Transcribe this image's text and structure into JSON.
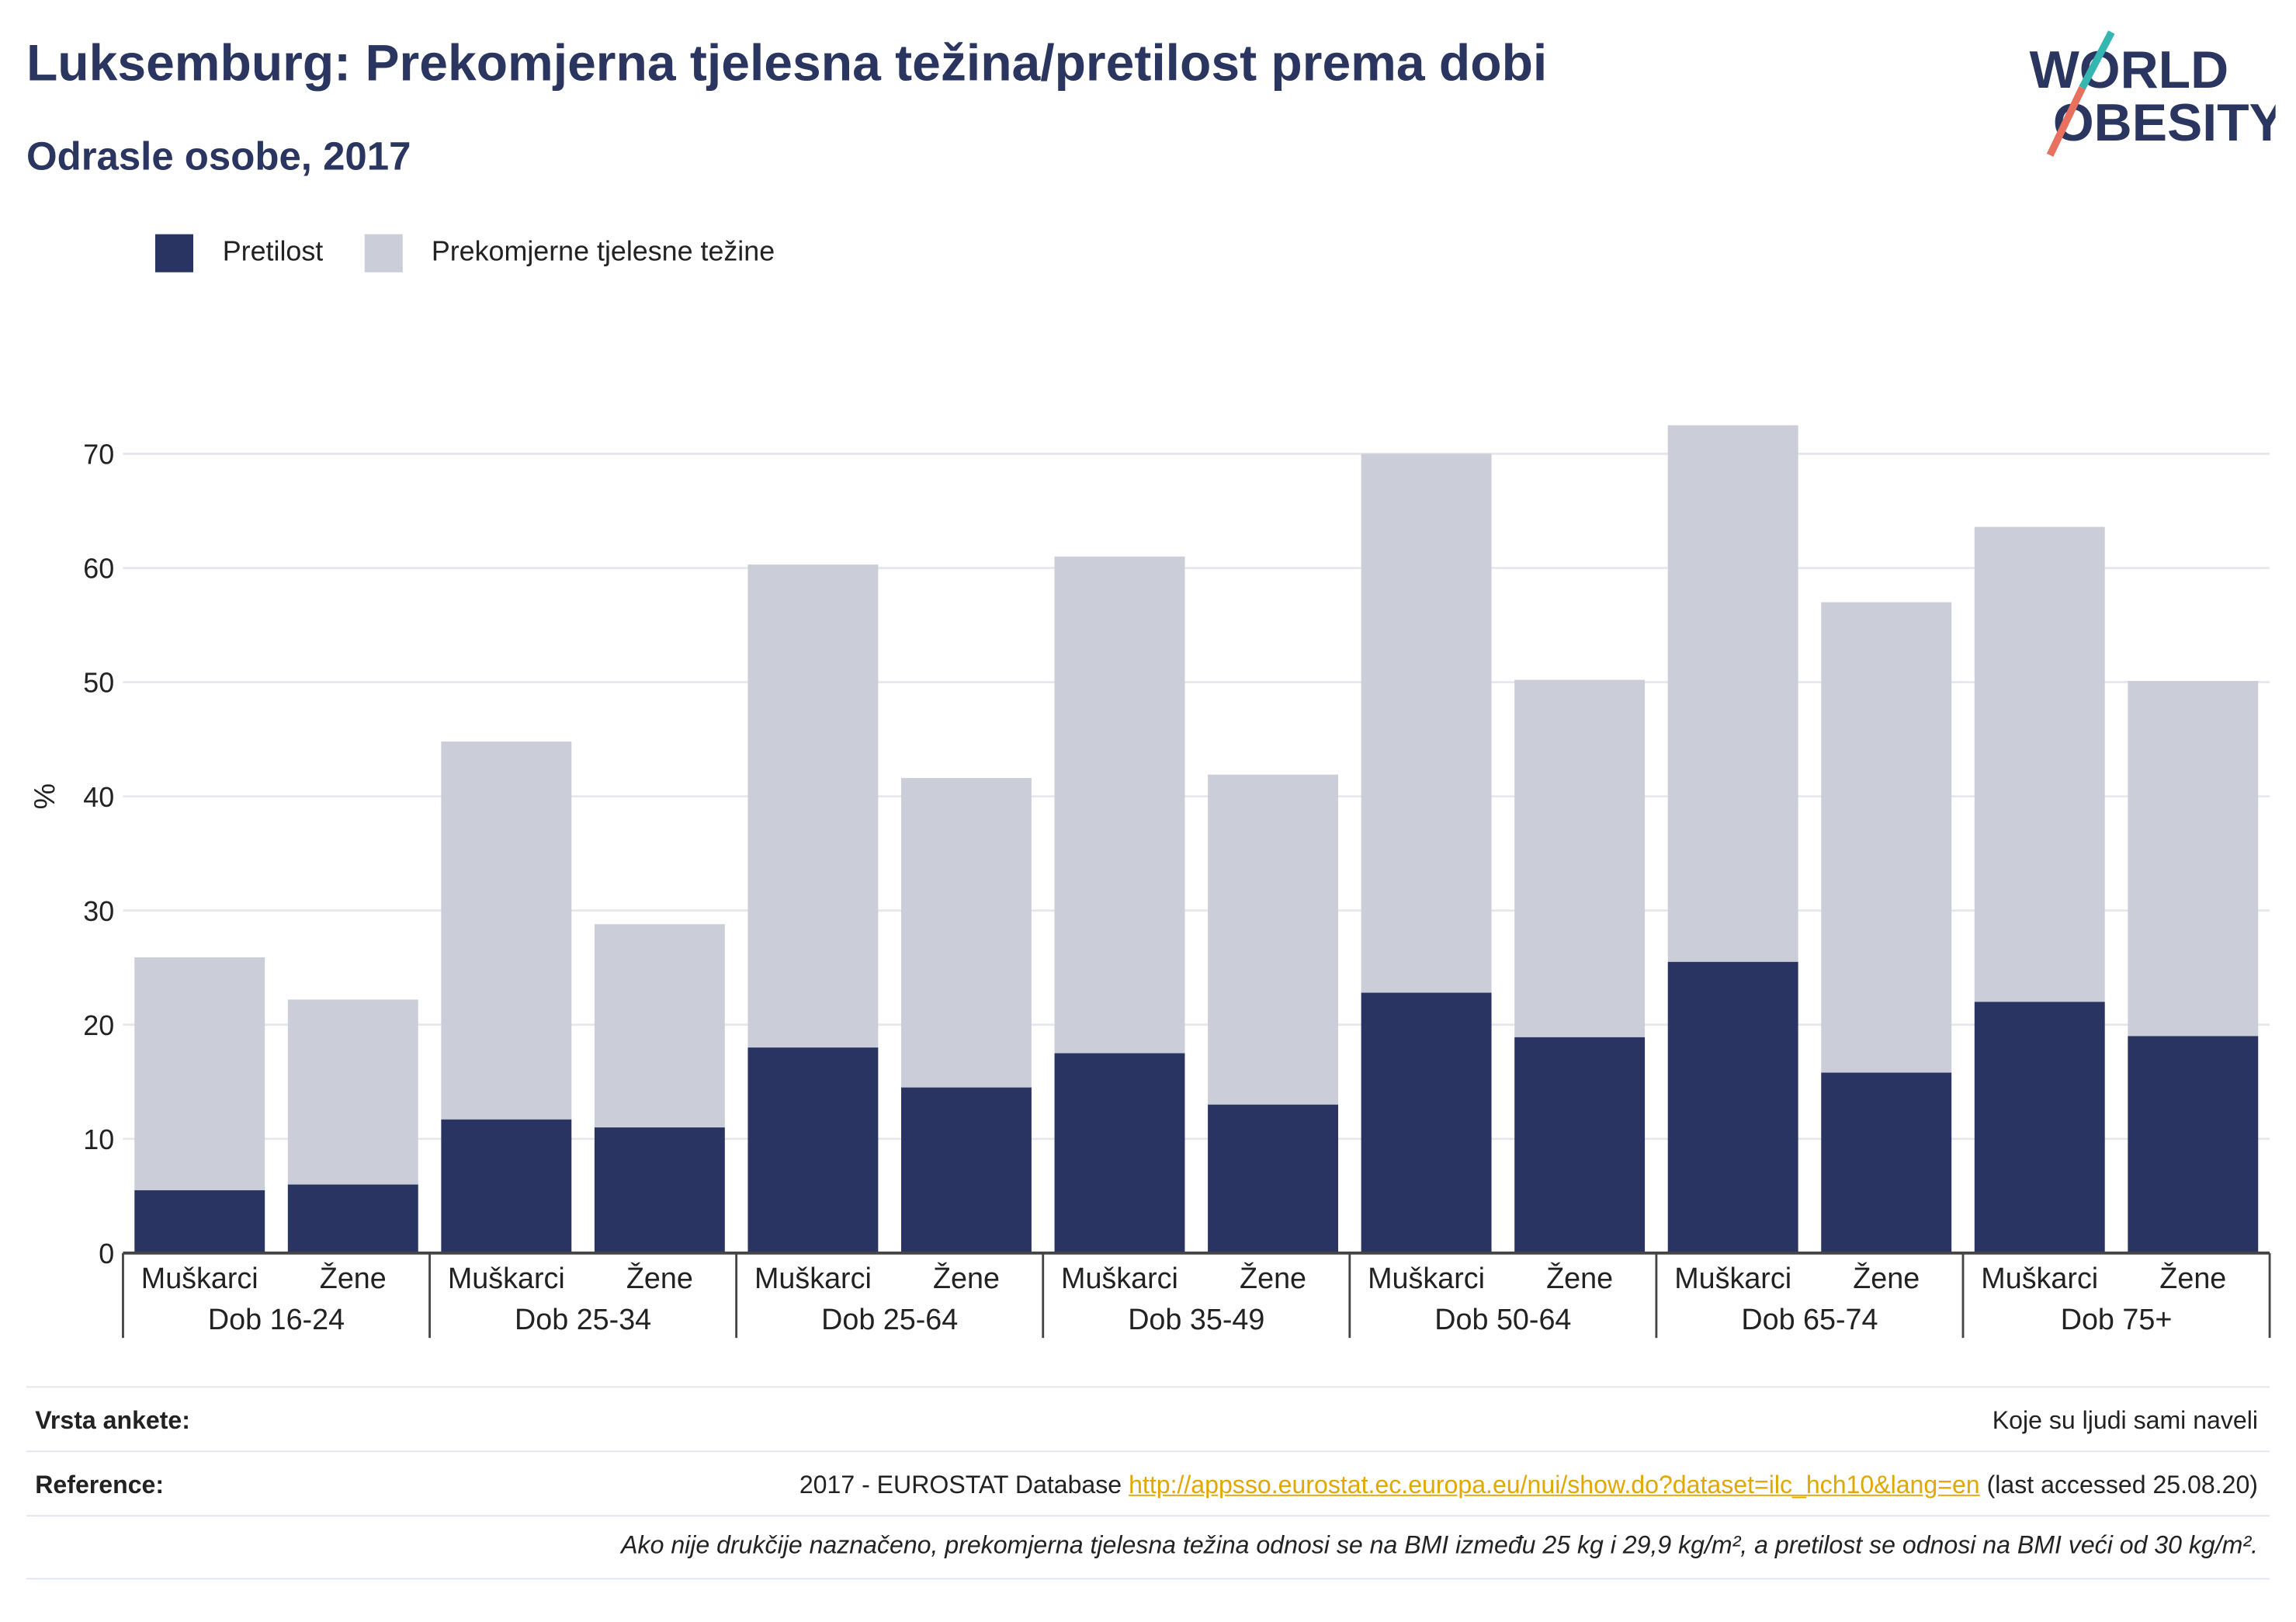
{
  "header": {
    "title": "Luksemburg: Prekomjerna tjelesna težina/pretilost prema dobi",
    "subtitle": "Odrasle osobe, 2017"
  },
  "logo": {
    "line1": "WORLD",
    "line2": "OBESITY"
  },
  "legend": [
    {
      "label": "Pretilost",
      "color": "#293462"
    },
    {
      "label": "Prekomjerne tjelesne težine",
      "color": "#cbcdd9"
    }
  ],
  "chart_data": {
    "type": "bar",
    "stacked": true,
    "ylabel": "%",
    "ylim": [
      0,
      80
    ],
    "yticks": [
      0,
      10,
      20,
      30,
      40,
      50,
      60,
      70
    ],
    "grid": true,
    "legend_position": "top-left",
    "groups": [
      "Dob 16-24",
      "Dob 25-34",
      "Dob 25-64",
      "Dob 35-49",
      "Dob 50-64",
      "Dob 65-74",
      "Dob 75+"
    ],
    "subcategories": [
      "Muškarci",
      "Žene"
    ],
    "series": [
      {
        "name": "Pretilost",
        "color": "#293462",
        "values": [
          5.5,
          6.0,
          11.7,
          11.0,
          18.0,
          14.5,
          17.5,
          13.0,
          22.8,
          18.9,
          25.5,
          15.8,
          22.0,
          19.0
        ]
      },
      {
        "name": "Prekomjerne tjelesne težine",
        "color": "#cbcdd9",
        "values": [
          20.4,
          16.2,
          33.1,
          17.8,
          42.3,
          27.1,
          43.5,
          28.9,
          47.2,
          31.3,
          47.0,
          41.2,
          41.6,
          31.1
        ]
      }
    ]
  },
  "footer": {
    "survey_label": "Vrsta ankete:",
    "survey_value": "Koje su ljudi sami naveli",
    "reference_label": "Reference:",
    "reference_prefix": "2017 - EUROSTAT Database",
    "reference_link": "http://appsso.eurostat.ec.europa.eu/nui/show.do?dataset=ilc_hch10&lang=en",
    "reference_suffix": "(last accessed 25.08.20)",
    "note": "Ako nije drukčije naznačeno, prekomjerna tjelesna težina odnosi se na BMI između 25 kg i 29,9 kg/m², a pretilost se odnosi na BMI veći od 30 kg/m²."
  }
}
